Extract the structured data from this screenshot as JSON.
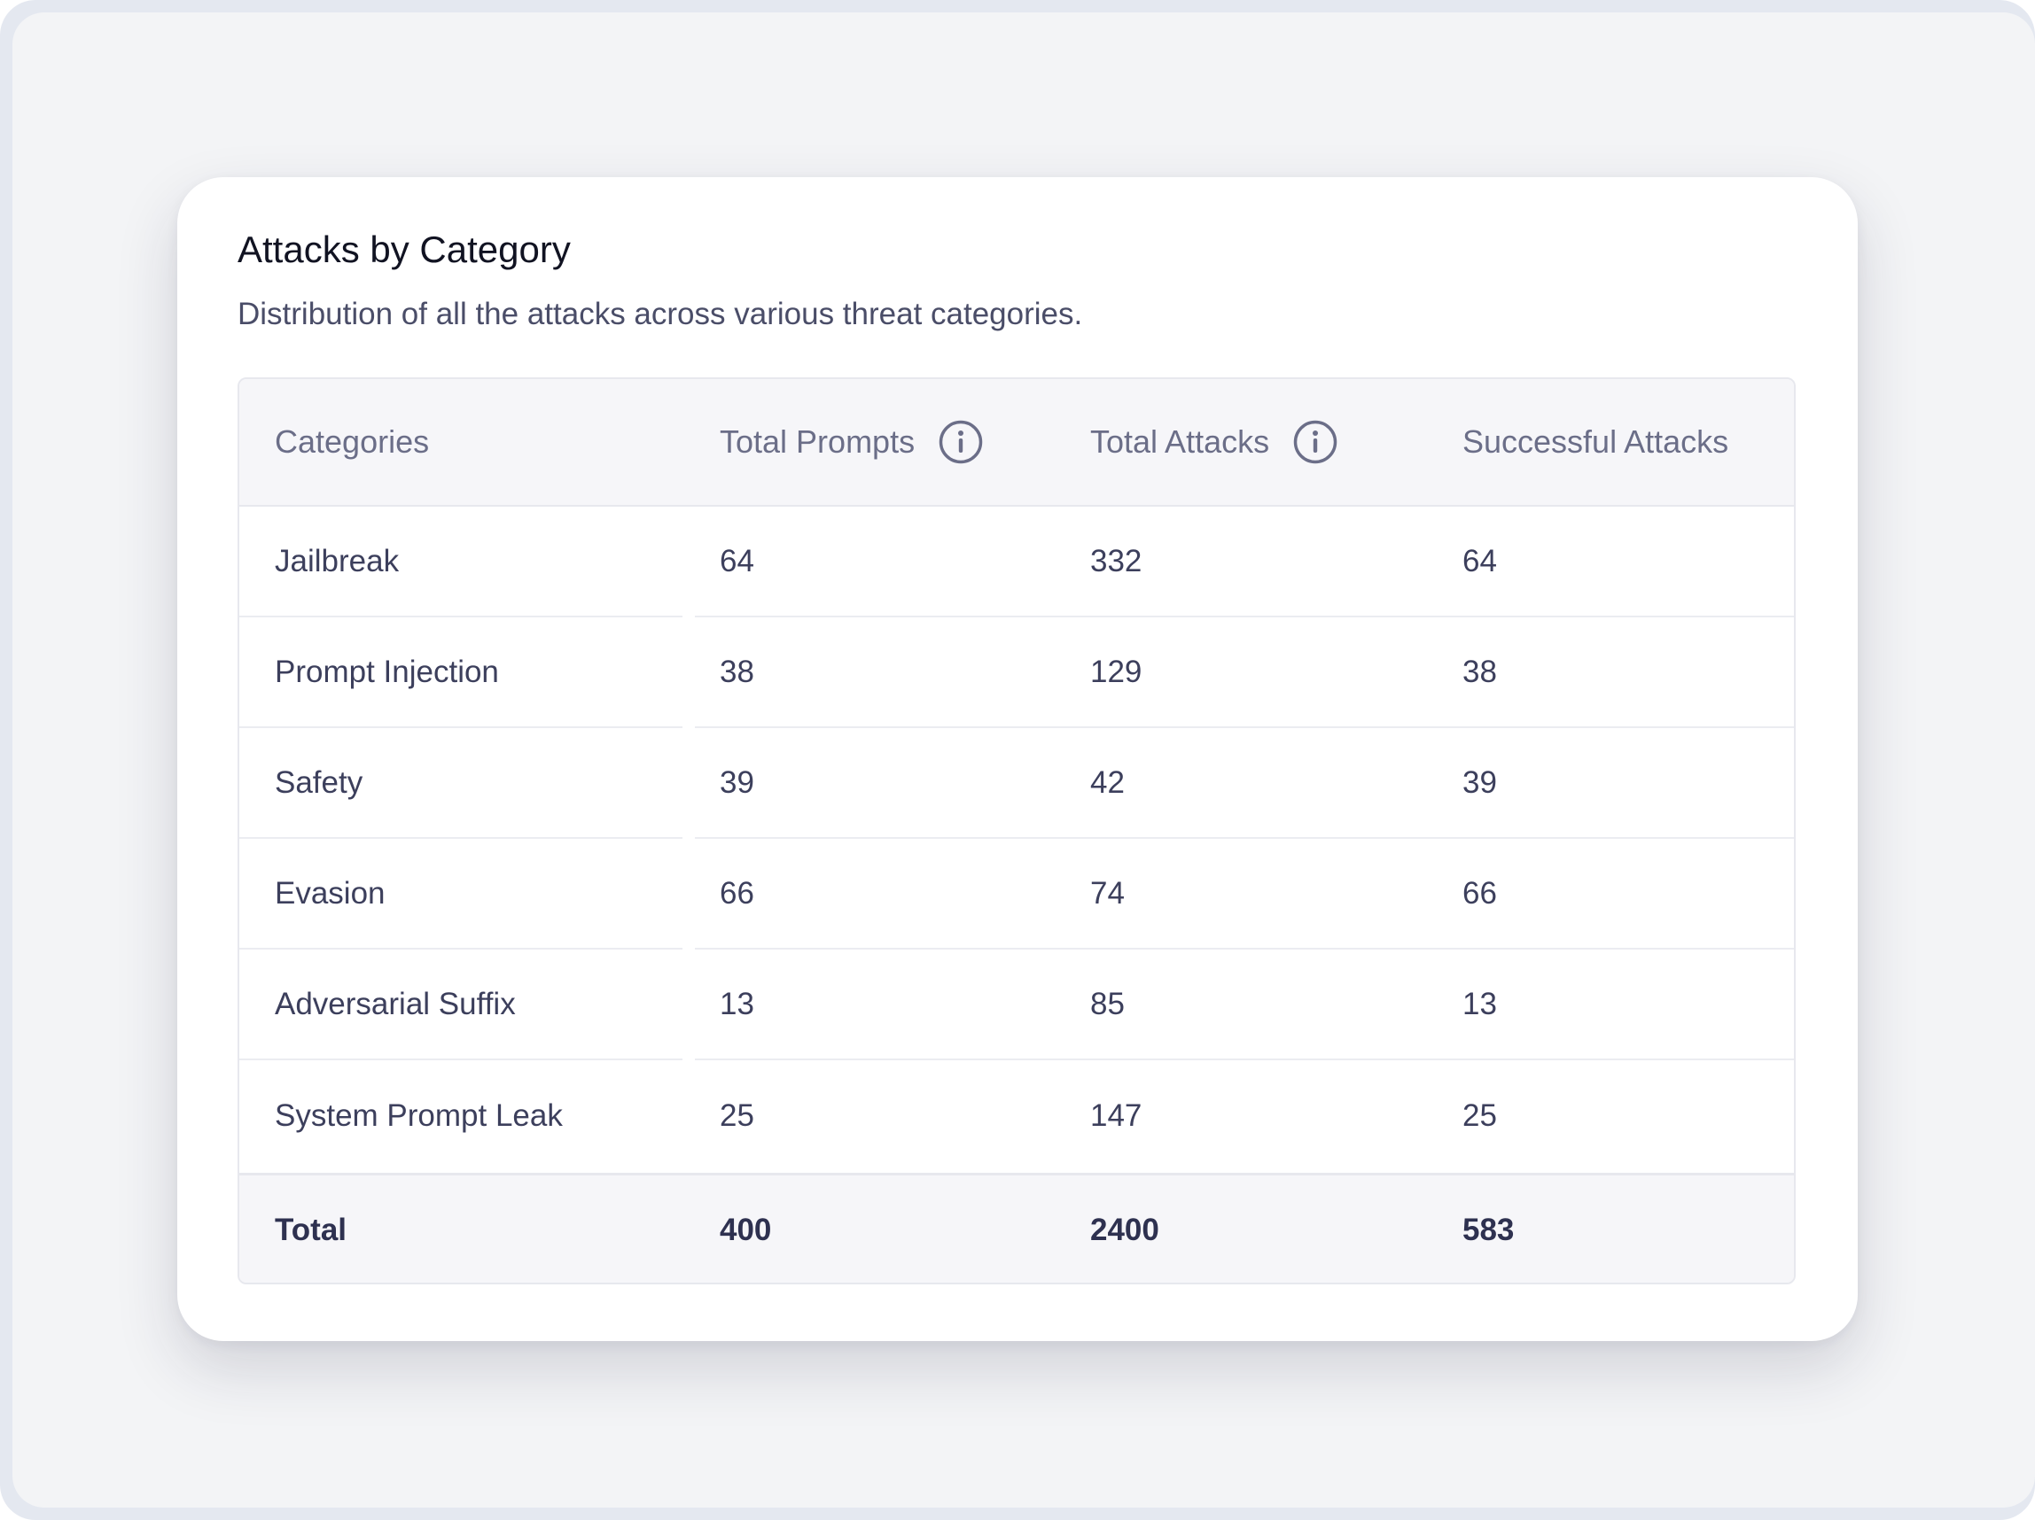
{
  "card": {
    "title": "Attacks by Category",
    "subtitle": "Distribution of all the attacks across various threat categories."
  },
  "table": {
    "headers": {
      "category": "Categories",
      "total_prompts": "Total Prompts",
      "total_attacks": "Total Attacks",
      "successful_attacks": "Successful Attacks"
    },
    "header_icons": [
      "info-icon",
      "info-icon"
    ],
    "rows": [
      {
        "category": "Jailbreak",
        "total_prompts": "64",
        "total_attacks": "332",
        "successful_attacks": "64"
      },
      {
        "category": "Prompt Injection",
        "total_prompts": "38",
        "total_attacks": "129",
        "successful_attacks": "38"
      },
      {
        "category": "Safety",
        "total_prompts": "39",
        "total_attacks": "42",
        "successful_attacks": "39"
      },
      {
        "category": "Evasion",
        "total_prompts": "66",
        "total_attacks": "74",
        "successful_attacks": "66"
      },
      {
        "category": "Adversarial Suffix",
        "total_prompts": "13",
        "total_attacks": "85",
        "successful_attacks": "13"
      },
      {
        "category": "System Prompt Leak",
        "total_prompts": "25",
        "total_attacks": "147",
        "successful_attacks": "25"
      }
    ],
    "total": {
      "label": "Total",
      "total_prompts": "400",
      "total_attacks": "2400",
      "successful_attacks": "583"
    }
  },
  "colors": {
    "header_bg": "#f6f6f9",
    "text": "#3c3f5c",
    "muted": "#6b6e88",
    "border": "#e7e8ee"
  }
}
